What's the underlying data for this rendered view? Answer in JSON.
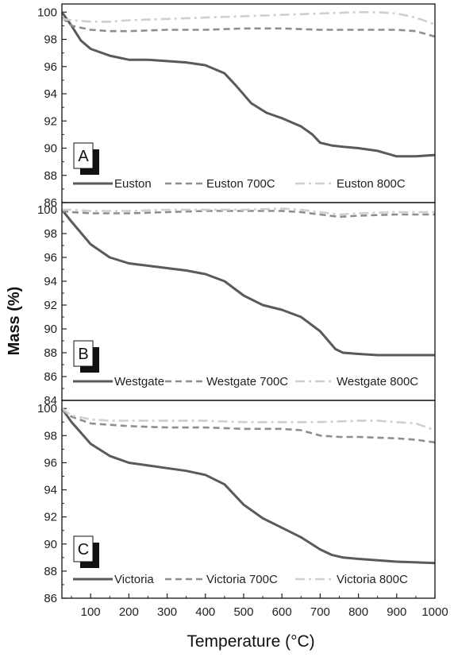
{
  "chart_data": {
    "type": "line",
    "xlabel": "Temperature (°C)",
    "ylabel": "Mass (%)",
    "xlim": [
      25,
      1000
    ],
    "x_ticks": [
      100,
      200,
      300,
      400,
      500,
      600,
      700,
      800,
      900,
      1000
    ],
    "grid": false,
    "panels": [
      {
        "label": "A",
        "ylim": [
          86,
          100.6
        ],
        "y_ticks": [
          86,
          88,
          90,
          92,
          94,
          96,
          98,
          100
        ],
        "legend": "bottom",
        "series": [
          {
            "name": "Euston",
            "style": "solid",
            "color": "#5a5a5a",
            "x": [
              25,
              50,
              75,
              100,
              150,
              200,
              250,
              300,
              350,
              400,
              450,
              480,
              520,
              560,
              600,
              650,
              680,
              700,
              730,
              760,
              800,
              850,
              900,
              950,
              1000
            ],
            "y": [
              100.0,
              99.0,
              97.9,
              97.3,
              96.8,
              96.5,
              96.5,
              96.4,
              96.3,
              96.1,
              95.5,
              94.6,
              93.3,
              92.6,
              92.2,
              91.6,
              91.0,
              90.4,
              90.2,
              90.1,
              90.0,
              89.8,
              89.4,
              89.4,
              89.5
            ]
          },
          {
            "name": "Euston 700C",
            "style": "dashed",
            "color": "#8e8e8e",
            "x": [
              25,
              50,
              100,
              150,
              200,
              300,
              400,
              500,
              600,
              700,
              800,
              900,
              950,
              1000
            ],
            "y": [
              99.6,
              99.0,
              98.7,
              98.6,
              98.6,
              98.7,
              98.7,
              98.8,
              98.8,
              98.7,
              98.7,
              98.7,
              98.6,
              98.2
            ]
          },
          {
            "name": "Euston 800C",
            "style": "dashdot",
            "color": "#cfcfcf",
            "x": [
              25,
              50,
              100,
              150,
              200,
              300,
              400,
              500,
              600,
              700,
              800,
              850,
              900,
              950,
              1000
            ],
            "y": [
              99.5,
              99.4,
              99.3,
              99.3,
              99.4,
              99.5,
              99.6,
              99.7,
              99.8,
              99.9,
              100.0,
              100.0,
              99.9,
              99.6,
              99.1
            ]
          }
        ]
      },
      {
        "label": "B",
        "ylim": [
          84,
          100.6
        ],
        "y_ticks": [
          84,
          86,
          88,
          90,
          92,
          94,
          96,
          98,
          100
        ],
        "legend": "bottom",
        "series": [
          {
            "name": "Westgate",
            "style": "solid",
            "color": "#5a5a5a",
            "x": [
              25,
              50,
              100,
              150,
              200,
              250,
              300,
              350,
              400,
              450,
              500,
              550,
              600,
              650,
              700,
              740,
              760,
              800,
              850,
              900,
              950,
              1000
            ],
            "y": [
              100.0,
              99.0,
              97.1,
              96.0,
              95.5,
              95.3,
              95.1,
              94.9,
              94.6,
              94.0,
              92.8,
              92.0,
              91.6,
              91.0,
              89.8,
              88.3,
              88.0,
              87.9,
              87.8,
              87.8,
              87.8,
              87.8
            ]
          },
          {
            "name": "Westgate 700C",
            "style": "dashed",
            "color": "#8e8e8e",
            "x": [
              25,
              50,
              100,
              200,
              300,
              400,
              500,
              600,
              650,
              700,
              750,
              800,
              900,
              1000
            ],
            "y": [
              99.9,
              99.8,
              99.7,
              99.7,
              99.8,
              99.9,
              99.9,
              99.9,
              99.8,
              99.6,
              99.4,
              99.5,
              99.6,
              99.6
            ]
          },
          {
            "name": "Westgate 800C",
            "style": "dashdot",
            "color": "#cfcfcf",
            "x": [
              25,
              50,
              100,
              200,
              300,
              400,
              500,
              600,
              650,
              700,
              750,
              800,
              900,
              1000
            ],
            "y": [
              100.0,
              100.0,
              99.9,
              99.9,
              100.0,
              100.0,
              100.0,
              100.1,
              100.0,
              99.8,
              99.6,
              99.7,
              99.8,
              99.8
            ]
          }
        ]
      },
      {
        "label": "C",
        "ylim": [
          86,
          100.6
        ],
        "y_ticks": [
          86,
          88,
          90,
          92,
          94,
          96,
          98,
          100
        ],
        "legend": "bottom",
        "series": [
          {
            "name": "Victoria",
            "style": "solid",
            "color": "#5a5a5a",
            "x": [
              25,
              50,
              100,
              150,
              200,
              250,
              300,
              350,
              400,
              450,
              500,
              550,
              600,
              650,
              700,
              730,
              760,
              800,
              900,
              1000
            ],
            "y": [
              100.0,
              99.0,
              97.4,
              96.5,
              96.0,
              95.8,
              95.6,
              95.4,
              95.1,
              94.4,
              92.9,
              91.9,
              91.2,
              90.5,
              89.6,
              89.2,
              89.0,
              88.9,
              88.7,
              88.6
            ]
          },
          {
            "name": "Victoria 700C",
            "style": "dashed",
            "color": "#8e8e8e",
            "x": [
              25,
              50,
              100,
              150,
              200,
              300,
              400,
              500,
              600,
              650,
              700,
              750,
              800,
              900,
              950,
              1000
            ],
            "y": [
              99.9,
              99.4,
              98.9,
              98.8,
              98.7,
              98.6,
              98.6,
              98.5,
              98.5,
              98.4,
              98.0,
              97.9,
              97.9,
              97.8,
              97.7,
              97.5
            ]
          },
          {
            "name": "Victoria 800C",
            "style": "dashdot",
            "color": "#cfcfcf",
            "x": [
              25,
              50,
              100,
              150,
              200,
              300,
              400,
              500,
              600,
              700,
              800,
              850,
              900,
              950,
              1000
            ],
            "y": [
              100.0,
              99.5,
              99.2,
              99.1,
              99.1,
              99.1,
              99.1,
              99.0,
              99.0,
              99.0,
              99.1,
              99.1,
              99.0,
              98.9,
              98.4
            ]
          }
        ]
      }
    ]
  }
}
